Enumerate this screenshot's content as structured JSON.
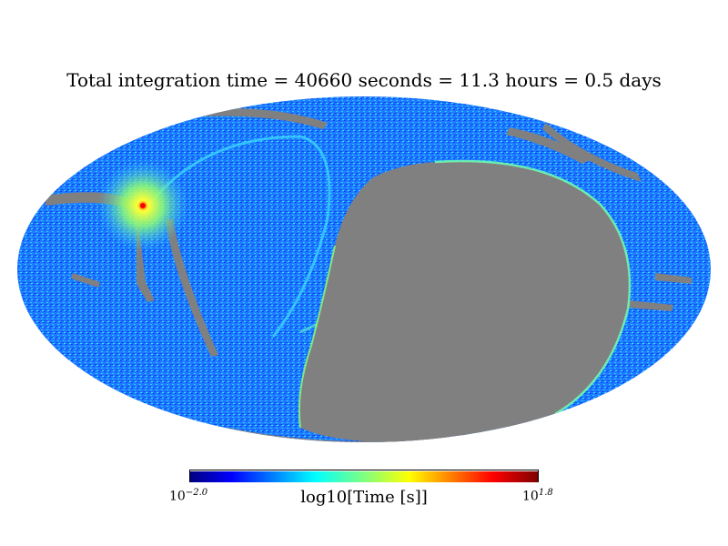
{
  "title": "Total integration time = 40660 seconds = 11.3 hours = 0.5 days",
  "colorbar": {
    "label": "log10[Time [s]]",
    "min_base": "10",
    "min_exp": "−2.0",
    "max_base": "10",
    "max_exp": "1.8",
    "colormap": "jet",
    "stops": [
      "#00007f",
      "#0000ff",
      "#007fff",
      "#00ffff",
      "#7fff7f",
      "#ffff00",
      "#ff7f00",
      "#ff0000",
      "#7f0000"
    ]
  },
  "map": {
    "projection": "mollweide",
    "background_color": "#808080",
    "dominant_color": "#1a6dff",
    "hotspot_color": "#dfff3a"
  }
}
